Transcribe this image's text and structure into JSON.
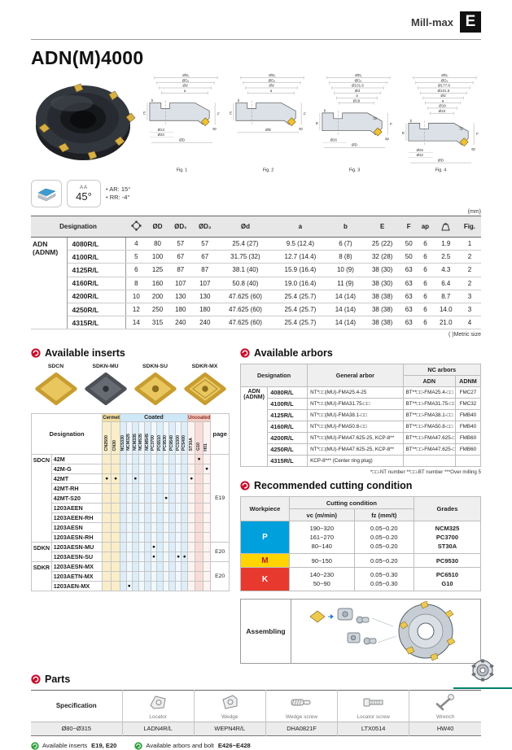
{
  "page": {
    "units_note": "(mm)",
    "metric_note": "( )Metric size"
  },
  "header": {
    "brand": "Mill-max",
    "section_letter": "E"
  },
  "title": "ADN(M)4000",
  "figures": [
    {
      "caption": "Fig. 1",
      "top": [
        "ØD₁",
        "ØD₂",
        "Ød",
        "a"
      ],
      "left": [
        "E",
        "b"
      ],
      "right": [
        "F",
        "ap"
      ],
      "mid": [],
      "bottom": [
        "Ø13",
        "Ø20",
        "ØD"
      ]
    },
    {
      "caption": "Fig. 2",
      "top": [
        "ØD₁",
        "ØD₂",
        "Ød",
        "a"
      ],
      "left": [
        "E",
        "b"
      ],
      "right": [
        "F",
        "ap"
      ],
      "mid": [],
      "bottom": [
        "ØD"
      ]
    },
    {
      "caption": "Fig. 3",
      "top": [
        "ØD₁",
        "ØD₂",
        "Ø101.6",
        "Ød",
        "a",
        "Ø18"
      ],
      "left": [
        "E",
        "b"
      ],
      "right": [
        "F",
        "ap"
      ],
      "mid": [
        "32"
      ],
      "bottom": [
        "Ø26",
        "ØD"
      ]
    },
    {
      "caption": "Fig. 4",
      "top": [
        "ØD₁",
        "ØD₂",
        "Ø177.8",
        "Ø101.6",
        "Ød",
        "a",
        "Ø18",
        "Ø22"
      ],
      "left": [
        "E",
        "b"
      ],
      "right": [
        "F",
        "ap"
      ],
      "mid": [
        "32"
      ],
      "bottom": [
        "Ø26",
        "Ø32",
        "ØD"
      ]
    }
  ],
  "badges": {
    "angle_code": "AA",
    "angle_value": "45°",
    "notes": [
      "AR: 15°",
      "RR: -4°"
    ]
  },
  "spec_table": {
    "series_lines": [
      "ADN",
      "(ADNM)"
    ],
    "columns": [
      {
        "label": "Designation"
      },
      {
        "icon": "insert-count-icon"
      },
      {
        "label": "ØD"
      },
      {
        "label": "ØD₁"
      },
      {
        "label": "ØD₂"
      },
      {
        "label": "Ød"
      },
      {
        "label": "a"
      },
      {
        "label": "b"
      },
      {
        "label": "E"
      },
      {
        "label": "F"
      },
      {
        "label": "ap"
      },
      {
        "icon": "weight-kg-icon"
      },
      {
        "label": "Fig."
      }
    ],
    "rows": [
      {
        "name": "4080R/L",
        "values": [
          "4",
          "80",
          "57",
          "57",
          "25.4 (27)",
          "9.5 (12.4)",
          "6 (7)",
          "25 (22)",
          "50",
          "6",
          "1.9",
          "1"
        ]
      },
      {
        "name": "4100R/L",
        "values": [
          "5",
          "100",
          "67",
          "67",
          "31.75 (32)",
          "12.7 (14.4)",
          "8 (8)",
          "32 (28)",
          "50",
          "6",
          "2.5",
          "2"
        ]
      },
      {
        "name": "4125R/L",
        "values": [
          "6",
          "125",
          "87",
          "87",
          "38.1 (40)",
          "15.9 (16.4)",
          "10 (9)",
          "38 (30)",
          "63",
          "6",
          "4.3",
          "2"
        ]
      },
      {
        "name": "4160R/L",
        "values": [
          "8",
          "160",
          "107",
          "107",
          "50.8 (40)",
          "19.0 (16.4)",
          "11 (9)",
          "38 (30)",
          "63",
          "6",
          "6.4",
          "2"
        ]
      },
      {
        "name": "4200R/L",
        "values": [
          "10",
          "200",
          "130",
          "130",
          "47.625 (60)",
          "25.4 (25.7)",
          "14 (14)",
          "38 (38)",
          "63",
          "6",
          "8.7",
          "3"
        ]
      },
      {
        "name": "4250R/L",
        "values": [
          "12",
          "250",
          "180",
          "180",
          "47.625 (60)",
          "25.4 (25.7)",
          "14 (14)",
          "38 (38)",
          "63",
          "6",
          "14.0",
          "3"
        ]
      },
      {
        "name": "4315R/L",
        "values": [
          "14",
          "315",
          "240",
          "240",
          "47.625 (60)",
          "25.4 (25.7)",
          "14 (14)",
          "38 (38)",
          "63",
          "6",
          "21.0",
          "4"
        ]
      }
    ]
  },
  "available_inserts": {
    "heading": "Available inserts",
    "insert_types": [
      {
        "label": "SDCN",
        "style": "gold-plain"
      },
      {
        "label": "SDKN-MU",
        "style": "dark-hole"
      },
      {
        "label": "SDKN-SU",
        "style": "gold-hole"
      },
      {
        "label": "SDKR-MX",
        "style": "gold-faceted"
      }
    ],
    "designation_header": "Designation",
    "page_header": "page",
    "grade_groups": [
      {
        "label": "Cermet",
        "type": "cermet",
        "grades": [
          "CN2500",
          "CN30"
        ]
      },
      {
        "label": "Coated",
        "type": "coated",
        "grades": [
          "NC5330",
          "NCM325",
          "NCM335",
          "NCM535",
          "NCM545",
          "PC3700",
          "PC6510",
          "PC9530",
          "PC9540",
          "PC5300",
          "PC5400"
        ]
      },
      {
        "label": "Uncoated",
        "type": "uncoated",
        "grades": [
          "ST30A",
          "G10",
          "H01"
        ]
      }
    ],
    "groups": [
      {
        "series": "SDCN",
        "page": "E19",
        "rows": [
          {
            "name": "42M",
            "dots": [
              "G10"
            ]
          },
          {
            "name": "42M-G",
            "dots": [
              "H01"
            ]
          },
          {
            "name": "42MT",
            "dots": [
              "CN2500",
              "CN30",
              "NCM335",
              "ST30A"
            ]
          },
          {
            "name": "42MT-RH",
            "dots": []
          },
          {
            "name": "42MT-S20",
            "dots": [
              "PC9530"
            ]
          },
          {
            "name": "1203AEEN",
            "dots": []
          },
          {
            "name": "1203AEEN-RH",
            "dots": []
          },
          {
            "name": "1203AESN",
            "dots": []
          },
          {
            "name": "1203AESN-RH",
            "dots": []
          }
        ]
      },
      {
        "series": "SDKN",
        "page": "E20",
        "rows": [
          {
            "name": "1203AESN-MU",
            "dots": [
              "PC3700"
            ]
          },
          {
            "name": "1203AESN-SU",
            "dots": [
              "PC3700",
              "PC5300",
              "PC5400"
            ]
          }
        ]
      },
      {
        "series": "SDKR",
        "page": "E20",
        "rows": [
          {
            "name": "1203AESN-MX",
            "dots": []
          },
          {
            "name": "1203AETN-MX",
            "dots": []
          },
          {
            "name": "1203AEN-MX",
            "dots": [
              "NCM325"
            ]
          }
        ]
      }
    ]
  },
  "available_arbors": {
    "heading": "Available arbors",
    "headers": {
      "designation": "Designation",
      "general": "General arbor",
      "nc": "NC arbors",
      "adn": "ADN",
      "adnm": "ADNM"
    },
    "series_lines": [
      "ADN",
      "(ADNM)"
    ],
    "rows": [
      {
        "size": "4080R/L",
        "general": "NT*□□(MU)-FMA25.4-25",
        "adn": "BT**□□-FMA25.4-□□",
        "adnm": "FMC27"
      },
      {
        "size": "4100R/L",
        "general": "NT*□□(MU)-FMA31.75-□□",
        "adn": "BT**□□-FMA31.75-□□",
        "adnm": "FMC32"
      },
      {
        "size": "4125R/L",
        "general": "NT*□□(MU)-FMA38.1-□□",
        "adn": "BT**□□-FMA38.1-□□",
        "adnm": "FMB40"
      },
      {
        "size": "4160R/L",
        "general": "NT*□□(MU)-FMA50.8-□□",
        "adn": "BT**□□-FMA50.8-□□",
        "adnm": "FMB40"
      },
      {
        "size": "4200R/L",
        "general": "NT*□□(MU)-FMA47.625-25, KCP-8**",
        "adn": "BT**□□-FMA47.625-□□",
        "adnm": "FMB60"
      },
      {
        "size": "4250R/L",
        "general": "NT*□□(MU)-FMA47.625-25, KCP-8**",
        "adn": "BT**□□-FMA47.625-□□",
        "adnm": "FMB60"
      },
      {
        "size": "4315R/L",
        "general": "KCP-8*** (Center ring plug)",
        "adn": "",
        "adnm": ""
      }
    ],
    "footnote": "*□□-NT number   **□□-BT number   ***Over milling 5"
  },
  "cutting_condition": {
    "heading": "Recommended cutting condition",
    "headers": {
      "workpiece": "Workpiece",
      "cutting": "Cutting condition",
      "vc": "vc (m/min)",
      "fz": "fz (mm/t)",
      "grades": "Grades"
    },
    "rows": [
      {
        "workpiece": "P",
        "vc": [
          "190~320",
          "161~270",
          "80~140"
        ],
        "fz": [
          "0.05~0.20",
          "0.05~0.20",
          "0.05~0.20"
        ],
        "grades": [
          "NCM325",
          "PC3700",
          "ST30A"
        ]
      },
      {
        "workpiece": "M",
        "vc": [
          "90~150"
        ],
        "fz": [
          "0.05~0.20"
        ],
        "grades": [
          "PC9530"
        ]
      },
      {
        "workpiece": "K",
        "vc": [
          "140~230",
          "50~90"
        ],
        "fz": [
          "0.05~0.30",
          "0.05~0.30"
        ],
        "grades": [
          "PC6510",
          "G10"
        ]
      }
    ]
  },
  "assembling": {
    "label": "Assembling"
  },
  "parts": {
    "heading": "Parts",
    "spec_header": "Specification",
    "spec_value": "Ø80~Ø315",
    "items": [
      {
        "caption": "Locator",
        "value": "LADN4R/L",
        "icon": "locator-icon"
      },
      {
        "caption": "Wedge",
        "value": "WEPN4R/L",
        "icon": "wedge-icon"
      },
      {
        "caption": "Wedge screw",
        "value": "DHA0821F",
        "icon": "wedge-screw-icon"
      },
      {
        "caption": "Locator screw",
        "value": "LTX0514",
        "icon": "locator-screw-icon"
      },
      {
        "caption": "Wrench",
        "value": "HW40",
        "icon": "wrench-icon"
      }
    ]
  },
  "footer_links": [
    {
      "label": "Available inserts",
      "pages": "E19, E20"
    },
    {
      "label": "Available arbors and bolt",
      "pages": "E426~E428"
    }
  ],
  "colors": {
    "accent_red": "#c8102e",
    "footer_green": "#2e9e3e",
    "brand_teal": "#00806e",
    "workpiece_P": "#00a0dc",
    "workpiece_M": "#ffd400",
    "workpiece_K": "#e8392f",
    "workpiece_P_text": "#ffffff",
    "workpiece_M_text": "#b32015",
    "workpiece_K_text": "#ffffff",
    "insert_gold": "#dfb84a",
    "header_gray": "#e7e7e7"
  }
}
